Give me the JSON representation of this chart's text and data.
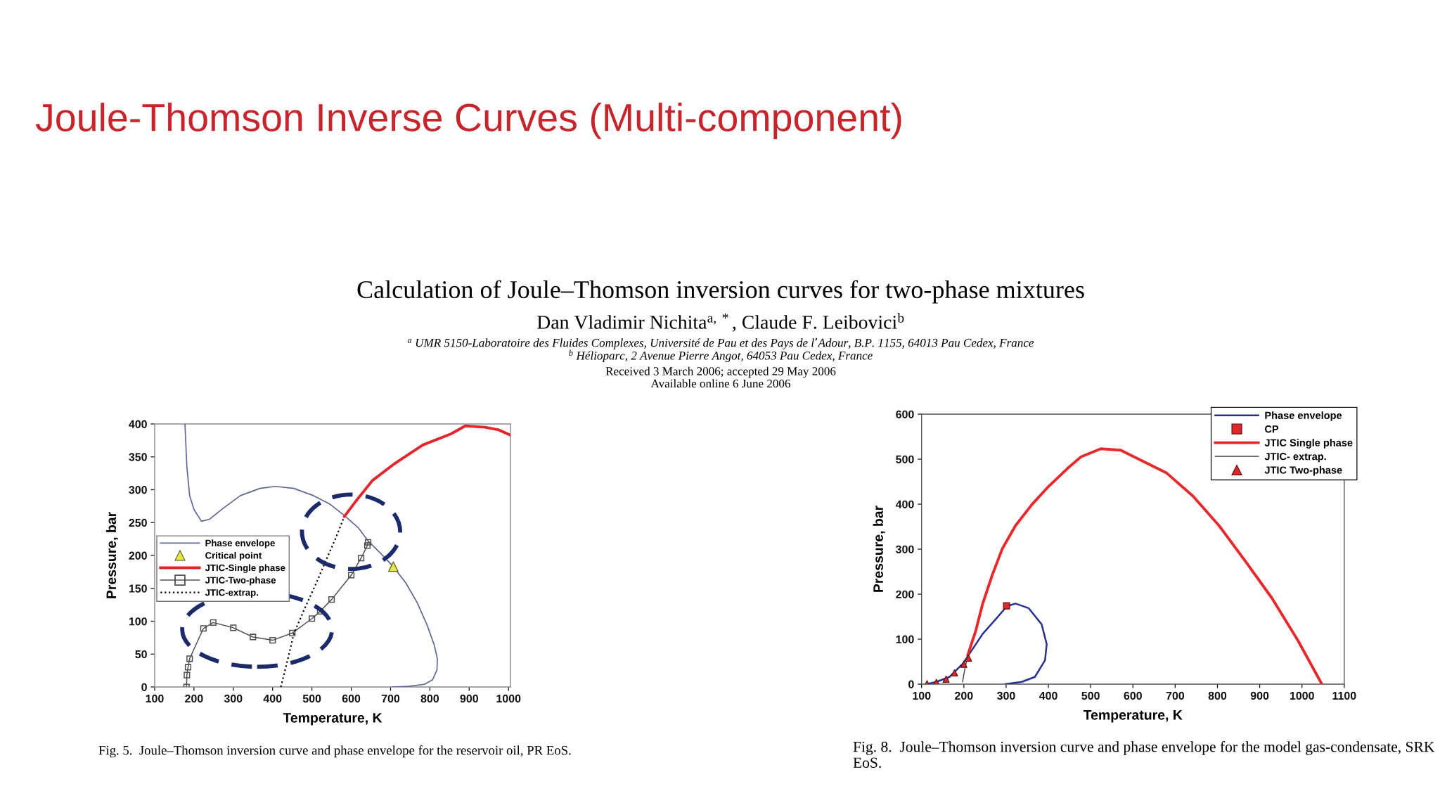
{
  "chart_data": [
    {
      "type": "other",
      "title": "Joule-Thomson Inverse Curves (Multi-component)",
      "annotations": [
        "Calculation of Joule–Thomson inversion curves for two-phase mixtures",
        "Dan Vladimir Nichita$^{a,*}$, Claude F. Leibovici$^{b}$",
        "$^{a}$ UMR 5150-Laboratoire des Fluides Complexes, Université de Pau et des Pays de l’Adour, B.P. 1155, 64013 Pau Cedex, France",
        "$^{b}$ Hélioparc, 2 Avenue Pierre Angot, 64053 Pau Cedex, France",
        "Received 3 March 2006; accepted 29 May 2006",
        "Available online 6 June 2006"
      ]
    },
    {
      "type": "line",
      "xlabel": "Temperature, K",
      "ylabel": "Pressure, bar",
      "xlim": [
        100,
        1005
      ],
      "ylim": [
        0,
        400
      ],
      "xticks": [
        100,
        200,
        300,
        400,
        500,
        600,
        700,
        800,
        900,
        1000
      ],
      "yticks": [
        0,
        50,
        100,
        150,
        200,
        250,
        300,
        350,
        400
      ],
      "legend": "left",
      "series": [
        {
          "name": "Phase envelope",
          "color": "#5f6496",
          "x": [
            177,
            182,
            189,
            200,
            219,
            239,
            275,
            318,
            368,
            407,
            454,
            504,
            546,
            582,
            618,
            643,
            675,
            707,
            739,
            768,
            793,
            811,
            819,
            818,
            807,
            786,
            746,
            704
          ],
          "values": [
            400,
            334,
            291,
            270,
            252,
            255,
            272,
            291,
            302,
            305,
            302,
            291,
            278,
            261,
            242,
            222,
            203,
            183,
            158,
            128,
            94,
            64,
            43,
            26,
            11,
            4,
            1,
            0
          ]
        },
        {
          "name": "Critical point",
          "type": "scatter",
          "marker": "triangle",
          "color": "#e4e64a",
          "x": [
            707
          ],
          "values": [
            183
          ]
        },
        {
          "name": "JTIC-Single phase",
          "color": "#e4262c",
          "x": [
            582,
            611,
            654,
            711,
            782,
            854,
            890,
            940,
            975,
            1005
          ],
          "values": [
            259,
            282,
            314,
            340,
            368,
            385,
            397,
            395,
            391,
            383
          ]
        },
        {
          "name": "JTIC-Two-phase",
          "marker": "square",
          "color": "#505050",
          "x": [
            181,
            182,
            185,
            189,
            224,
            249,
            300,
            350,
            400,
            450,
            500,
            521,
            550,
            600,
            625,
            641,
            643
          ],
          "values": [
            0,
            18,
            30,
            43,
            89,
            98,
            90,
            76,
            71,
            82,
            104,
            115,
            133,
            170,
            196,
            215,
            220
          ]
        },
        {
          "name": "JTIC-extrap.",
          "line_style": "dotted",
          "color": "#000000",
          "x": [
            421,
            439,
            454,
            482,
            511,
            539,
            561,
            582
          ],
          "values": [
            0,
            43,
            81,
            120,
            158,
            197,
            227,
            259
          ]
        }
      ],
      "annotations": [
        "Fig. 5.  Joule–Thomson inversion curve and phase envelope for the reservoir oil, PR EoS."
      ]
    },
    {
      "type": "line",
      "xlabel": "Temperature, K",
      "ylabel": "Pressure, bar",
      "xlim": [
        100,
        1100
      ],
      "ylim": [
        0,
        600
      ],
      "xticks": [
        100,
        200,
        300,
        400,
        500,
        600,
        700,
        800,
        900,
        1000,
        1100
      ],
      "yticks": [
        0,
        100,
        200,
        300,
        400,
        500,
        600
      ],
      "legend": "top right",
      "series": [
        {
          "name": "Phase envelope",
          "color": "#28318f",
          "x": [
            112,
            135,
            166,
            197,
            213,
            244,
            275,
            302,
            322,
            353,
            384,
            396,
            392,
            368,
            337,
            298
          ],
          "values": [
            0,
            5,
            16,
            45,
            67,
            111,
            144,
            173,
            179,
            169,
            133,
            89,
            53,
            16,
            5,
            0
          ]
        },
        {
          "name": "CP",
          "type": "scatter",
          "marker": "square",
          "color": "#e0282c",
          "x": [
            301
          ],
          "values": [
            174
          ]
        },
        {
          "name": "JTIC Single phase",
          "color": "#e8282b",
          "x": [
            209,
            228,
            244,
            267,
            291,
            322,
            361,
            400,
            446,
            477,
            524,
            571,
            633,
            680,
            742,
            804,
            867,
            929,
            991,
            1047
          ],
          "values": [
            64,
            118,
            177,
            242,
            301,
            352,
            399,
            439,
            480,
            505,
            523,
            520,
            491,
            469,
            418,
            352,
            272,
            191,
            96,
            0
          ]
        },
        {
          "name": "JTIC- extrap.",
          "color": "#3c3c3c",
          "x": [
            197,
            200,
            205,
            209
          ],
          "values": [
            5,
            22,
            45,
            64
          ]
        },
        {
          "name": "JTIC Two-phase",
          "type": "scatter",
          "marker": "triangle",
          "color": "#e0282c",
          "x": [
            113,
            135,
            158,
            178,
            200,
            211
          ],
          "values": [
            1,
            4,
            11,
            25,
            44,
            58
          ]
        }
      ],
      "annotations": [
        "Fig. 8.  Joule–Thomson inversion curve and phase envelope for the model gas-condensate, SRK EoS."
      ]
    }
  ]
}
